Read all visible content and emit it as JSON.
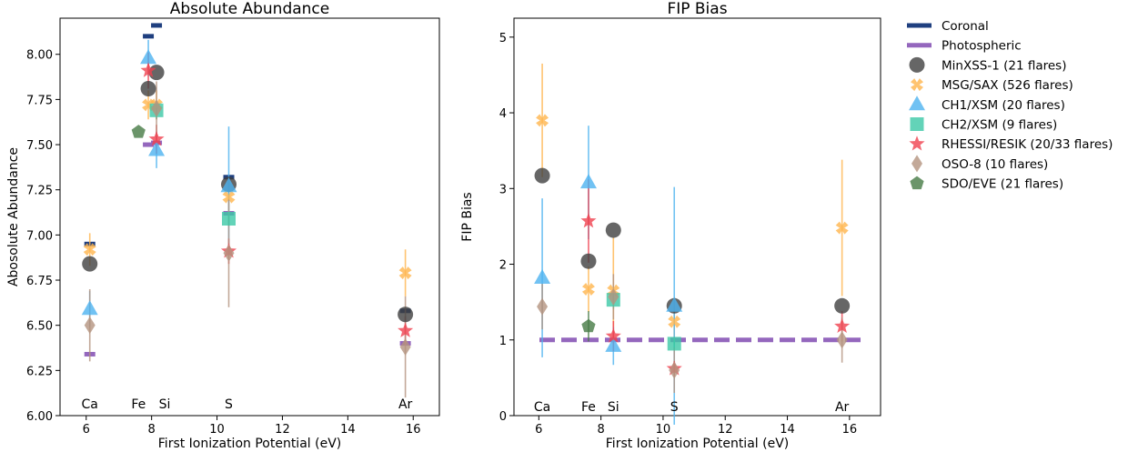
{
  "chart_data": [
    {
      "type": "scatter",
      "title": "Absolute Abundance",
      "xlabel": "First Ionization Potential (eV)",
      "ylabel": "Abosolute Abundance",
      "xlim": [
        5.2,
        16.8
      ],
      "ylim": [
        6.0,
        8.2
      ],
      "xticks": [
        6,
        8,
        10,
        12,
        14,
        16
      ],
      "yticks": [
        6.0,
        6.25,
        6.5,
        6.75,
        7.0,
        7.25,
        7.5,
        7.75,
        8.0
      ],
      "ytick_labels": [
        "6.00",
        "6.25",
        "6.50",
        "6.75",
        "7.00",
        "7.25",
        "7.50",
        "7.75",
        "8.00"
      ],
      "element_labels": [
        {
          "text": "Ca",
          "x": 6.11
        },
        {
          "text": "Fe",
          "x": 7.6
        },
        {
          "text": "Si",
          "x": 8.4
        },
        {
          "text": "S",
          "x": 10.36
        },
        {
          "text": "Ar",
          "x": 15.76
        }
      ],
      "element_label_y": 6.04,
      "reference_lines": [
        {
          "name": "Coronal",
          "segments": [
            [
              6.11,
              6.95
            ],
            [
              7.9,
              8.1
            ],
            [
              8.15,
              8.16
            ],
            [
              10.36,
              7.32
            ],
            [
              15.76,
              6.58
            ]
          ]
        },
        {
          "name": "Photospheric",
          "segments": [
            [
              6.11,
              6.34
            ],
            [
              7.9,
              7.5
            ],
            [
              8.15,
              7.51
            ],
            [
              10.36,
              7.12
            ],
            [
              15.76,
              6.4
            ]
          ]
        }
      ],
      "series": [
        {
          "name": "MinXSS-1 (21 flares)",
          "points": [
            {
              "x": 6.11,
              "y": 6.84
            },
            {
              "x": 7.9,
              "y": 7.81
            },
            {
              "x": 8.15,
              "y": 7.9
            },
            {
              "x": 10.36,
              "y": 7.28
            },
            {
              "x": 15.76,
              "y": 6.56
            }
          ]
        },
        {
          "name": "MSG/SAX (526 flares)",
          "points": [
            {
              "x": 6.11,
              "y": 6.92,
              "err": 0.09
            },
            {
              "x": 7.9,
              "y": 7.72,
              "err": 0.08
            },
            {
              "x": 8.15,
              "y": 7.72,
              "err": 0.08
            },
            {
              "x": 10.36,
              "y": 7.21,
              "err": 0.08
            },
            {
              "x": 15.76,
              "y": 6.79,
              "err": 0.13
            }
          ]
        },
        {
          "name": "CH1/XSM (20 flares)",
          "points": [
            {
              "x": 6.11,
              "y": 6.59,
              "err": 0.1
            },
            {
              "x": 7.9,
              "y": 7.98,
              "err": 0.1
            },
            {
              "x": 8.15,
              "y": 7.47,
              "err": 0.1
            },
            {
              "x": 10.36,
              "y": 7.27,
              "err": 0.33
            }
          ]
        },
        {
          "name": "CH2/XSM (9 flares)",
          "points": [
            {
              "x": 8.15,
              "y": 7.69,
              "err": 0.05
            },
            {
              "x": 10.36,
              "y": 7.09,
              "err": 0.04
            }
          ]
        },
        {
          "name": "RHESSI/RESIK (20/33 flares)",
          "points": [
            {
              "x": 7.9,
              "y": 7.91,
              "err": 0.1
            },
            {
              "x": 8.15,
              "y": 7.53,
              "err": 0.08
            },
            {
              "x": 10.36,
              "y": 6.91,
              "err": 0.07
            },
            {
              "x": 15.76,
              "y": 6.47,
              "err": 0.08
            }
          ]
        },
        {
          "name": "OSO-8 (10 flares)",
          "points": [
            {
              "x": 6.11,
              "y": 6.5,
              "err": 0.2
            },
            {
              "x": 8.15,
              "y": 7.7,
              "err": 0.15
            },
            {
              "x": 10.36,
              "y": 6.9,
              "err": 0.3
            },
            {
              "x": 15.76,
              "y": 6.38,
              "err": 0.28
            }
          ]
        },
        {
          "name": "SDO/EVE (21 flares)",
          "points": [
            {
              "x": 7.6,
              "y": 7.57
            }
          ]
        }
      ]
    },
    {
      "type": "scatter",
      "title": "FIP Bias",
      "xlabel": "First Ionization Potential (eV)",
      "ylabel": "FIP Bias",
      "xlim": [
        5.2,
        17.0
      ],
      "ylim": [
        0,
        5.25
      ],
      "xticks": [
        6,
        8,
        10,
        12,
        14,
        16
      ],
      "yticks": [
        0,
        1,
        2,
        3,
        4,
        5
      ],
      "ytick_labels": [
        "0",
        "1",
        "2",
        "3",
        "4",
        "5"
      ],
      "element_labels": [
        {
          "text": "Ca",
          "x": 6.11
        },
        {
          "text": "Fe",
          "x": 7.6
        },
        {
          "text": "Si",
          "x": 8.4
        },
        {
          "text": "S",
          "x": 10.36
        },
        {
          "text": "Ar",
          "x": 15.76
        }
      ],
      "element_label_y": 0.06,
      "photospheric_line": {
        "name": "Photospheric",
        "y": 1.0
      },
      "series": [
        {
          "name": "MinXSS-1 (21 flares)",
          "points": [
            {
              "x": 6.11,
              "y": 3.17
            },
            {
              "x": 7.6,
              "y": 2.04
            },
            {
              "x": 8.4,
              "y": 2.45
            },
            {
              "x": 10.36,
              "y": 1.45
            },
            {
              "x": 15.76,
              "y": 1.45
            }
          ]
        },
        {
          "name": "MSG/SAX (526 flares)",
          "points": [
            {
              "x": 6.11,
              "y": 3.9,
              "err": 0.75
            },
            {
              "x": 7.6,
              "y": 1.67,
              "err": 0.3
            },
            {
              "x": 8.4,
              "y": 1.65,
              "err": 0.7
            },
            {
              "x": 10.36,
              "y": 1.24,
              "err": 0.3
            },
            {
              "x": 15.76,
              "y": 2.48,
              "err": 0.9
            }
          ]
        },
        {
          "name": "CH1/XSM (20 flares)",
          "points": [
            {
              "x": 6.11,
              "y": 1.82,
              "err": 1.05
            },
            {
              "x": 7.6,
              "y": 3.08,
              "err": 0.75
            },
            {
              "x": 8.4,
              "y": 0.92,
              "err": 0.25
            },
            {
              "x": 10.36,
              "y": 1.45,
              "err": 1.57
            }
          ]
        },
        {
          "name": "CH2/XSM (9 flares)",
          "points": [
            {
              "x": 8.4,
              "y": 1.53,
              "err": 0.12
            },
            {
              "x": 10.36,
              "y": 0.95,
              "err": 0.08
            }
          ]
        },
        {
          "name": "RHESSI/RESIK (20/33 flares)",
          "points": [
            {
              "x": 7.6,
              "y": 2.57,
              "err": 0.55
            },
            {
              "x": 8.4,
              "y": 1.05,
              "err": 0.2
            },
            {
              "x": 10.36,
              "y": 0.62,
              "err": 0.1
            },
            {
              "x": 15.76,
              "y": 1.18,
              "err": 0.2
            }
          ]
        },
        {
          "name": "OSO-8 (10 flares)",
          "points": [
            {
              "x": 6.11,
              "y": 1.44,
              "err": 0.3
            },
            {
              "x": 8.4,
              "y": 1.57,
              "err": 0.3
            },
            {
              "x": 10.36,
              "y": 0.6,
              "err": 0.3
            },
            {
              "x": 15.76,
              "y": 1.0,
              "err": 0.3
            }
          ]
        },
        {
          "name": "SDO/EVE (21 flares)",
          "points": [
            {
              "x": 7.6,
              "y": 1.18,
              "err": 0.2
            }
          ]
        }
      ]
    }
  ],
  "legend": {
    "placement": "right-outside",
    "items": [
      {
        "label": "Coronal",
        "kind": "line",
        "color": "#1f3f7f"
      },
      {
        "label": "Photospheric",
        "kind": "line",
        "color": "#9467bd"
      },
      {
        "label": "MinXSS-1 (21 flares)",
        "kind": "marker",
        "marker": "circle",
        "color": "#404040"
      },
      {
        "label": "MSG/SAX (526 flares)",
        "kind": "marker",
        "marker": "x",
        "color": "#ffb54d"
      },
      {
        "label": "CH1/XSM (20 flares)",
        "kind": "marker",
        "marker": "triangle",
        "color": "#4db3f0"
      },
      {
        "label": "CH2/XSM (9 flares)",
        "kind": "marker",
        "marker": "square",
        "color": "#3cc8a6"
      },
      {
        "label": "RHESSI/RESIK (20/33 flares)",
        "kind": "marker",
        "marker": "star",
        "color": "#f0414f"
      },
      {
        "label": "OSO-8 (10 flares)",
        "kind": "marker",
        "marker": "diamond",
        "color": "#b4937f"
      },
      {
        "label": "SDO/EVE (21 flares)",
        "kind": "marker",
        "marker": "pentagon",
        "color": "#467a45"
      }
    ]
  },
  "colors": {
    "Coronal": "#1f3f7f",
    "Photospheric": "#9467bd",
    "MinXSS-1 (21 flares)": "#404040",
    "MSG/SAX (526 flares)": "#ffb54d",
    "CH1/XSM (20 flares)": "#4db3f0",
    "CH2/XSM (9 flares)": "#3cc8a6",
    "RHESSI/RESIK (20/33 flares)": "#f0414f",
    "OSO-8 (10 flares)": "#b4937f",
    "SDO/EVE (21 flares)": "#467a45"
  },
  "markers": {
    "MinXSS-1 (21 flares)": "circle",
    "MSG/SAX (526 flares)": "x",
    "CH1/XSM (20 flares)": "triangle",
    "CH2/XSM (9 flares)": "square",
    "RHESSI/RESIK (20/33 flares)": "star",
    "OSO-8 (10 flares)": "diamond",
    "SDO/EVE (21 flares)": "pentagon"
  }
}
